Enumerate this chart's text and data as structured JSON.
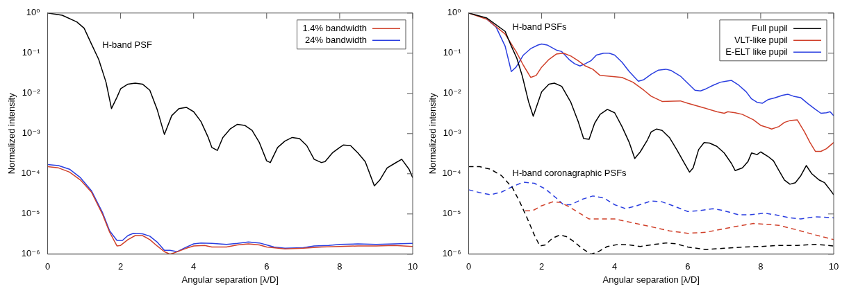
{
  "chart_data": [
    {
      "type": "line",
      "xlabel": "Angular separation [λ/D]",
      "ylabel": "Normalized intensity",
      "log": "y",
      "marker": "none",
      "legend": "top right",
      "xlim": [
        0,
        10
      ],
      "xticks": [
        0,
        2,
        4,
        6,
        8,
        10
      ],
      "ylim": [
        1e-06,
        1
      ],
      "yticks": [
        {
          "value": 1e-06,
          "label": "10⁻⁶"
        },
        {
          "value": 1e-05,
          "label": "10⁻⁵"
        },
        {
          "value": 0.0001,
          "label": "10⁻⁴"
        },
        {
          "value": 0.001,
          "label": "10⁻³"
        },
        {
          "value": 0.01,
          "label": "10⁻²"
        },
        {
          "value": 0.1,
          "label": "10⁻¹"
        },
        {
          "value": 1,
          "label": "10⁰"
        }
      ],
      "annotations": [
        "H-band PSF"
      ],
      "series": [
        {
          "color": "#000000",
          "line_style": "solid",
          "x": [
            0,
            0.4,
            0.8,
            1.0,
            1.2,
            1.4,
            1.6,
            1.75,
            1.9,
            2.0,
            2.2,
            2.4,
            2.6,
            2.8,
            3.0,
            3.2,
            3.4,
            3.6,
            3.8,
            4.0,
            4.2,
            4.4,
            4.5,
            4.65,
            4.8,
            5.0,
            5.2,
            5.4,
            5.6,
            5.8,
            6.0,
            6.1,
            6.3,
            6.5,
            6.7,
            6.9,
            7.1,
            7.3,
            7.5,
            7.6,
            7.8,
            8.0,
            8.1,
            8.3,
            8.5,
            8.7,
            8.95,
            9.1,
            9.3,
            9.5,
            9.7,
            9.9,
            10
          ],
          "values": [
            1,
            0.88,
            0.6,
            0.42,
            0.17,
            0.07,
            0.019,
            0.0042,
            0.008,
            0.013,
            0.017,
            0.018,
            0.017,
            0.012,
            0.004,
            0.00095,
            0.0028,
            0.0042,
            0.0045,
            0.0035,
            0.002,
            0.0008,
            0.00045,
            0.00038,
            0.0008,
            0.0013,
            0.0017,
            0.0016,
            0.0012,
            0.0006,
            0.00021,
            0.00019,
            0.00045,
            0.00065,
            0.0008,
            0.00075,
            0.0005,
            0.00023,
            0.00019,
            0.0002,
            0.00033,
            0.00045,
            0.00052,
            0.0005,
            0.00033,
            0.0002,
            5e-05,
            7e-05,
            0.00014,
            0.00018,
            0.00023,
            0.00013,
            8e-05
          ]
        },
        {
          "name": "1.4% bandwidth",
          "color": "#d0402a",
          "line_style": "solid",
          "x": [
            0,
            0.3,
            0.6,
            0.9,
            1.2,
            1.5,
            1.7,
            1.9,
            2.0,
            2.2,
            2.4,
            2.6,
            2.8,
            3.0,
            3.2,
            3.35,
            3.5,
            3.8,
            4.0,
            4.3,
            4.5,
            4.9,
            5.2,
            5.5,
            5.8,
            6.0,
            6.5,
            7.0,
            7.5,
            8.0,
            8.5,
            9.0,
            9.5,
            10
          ],
          "values": [
            0.00015,
            0.00014,
            0.00011,
            7e-05,
            3.5e-05,
            1e-05,
            3.5e-06,
            1.6e-06,
            1.65e-06,
            2.3e-06,
            2.9e-06,
            2.9e-06,
            2.3e-06,
            1.6e-06,
            1.15e-06,
            1e-06,
            1.1e-06,
            1.4e-06,
            1.6e-06,
            1.65e-06,
            1.5e-06,
            1.5e-06,
            1.7e-06,
            1.8e-06,
            1.7e-06,
            1.5e-06,
            1.35e-06,
            1.4e-06,
            1.5e-06,
            1.55e-06,
            1.6e-06,
            1.6e-06,
            1.65e-06,
            1.55e-06
          ]
        },
        {
          "name": "24% bandwidth",
          "color": "#2a3ee0",
          "line_style": "solid",
          "x": [
            0,
            0.3,
            0.6,
            0.9,
            1.2,
            1.5,
            1.7,
            1.9,
            2.05,
            2.2,
            2.35,
            2.6,
            2.8,
            3.0,
            3.2,
            3.35,
            3.55,
            3.8,
            4.0,
            4.2,
            4.5,
            4.9,
            5.2,
            5.5,
            5.8,
            6.0,
            6.2,
            6.5,
            7.0,
            7.3,
            7.7,
            8.0,
            8.5,
            9.0,
            9.5,
            10
          ],
          "values": [
            0.00017,
            0.00016,
            0.00013,
            8e-05,
            3.8e-05,
            1.1e-05,
            3.8e-06,
            2.2e-06,
            2.2e-06,
            2.9e-06,
            3.3e-06,
            3.2e-06,
            2.8e-06,
            2e-06,
            1.25e-06,
            1.25e-06,
            1.15e-06,
            1.5e-06,
            1.8e-06,
            1.9e-06,
            1.85e-06,
            1.75e-06,
            1.85e-06,
            2e-06,
            1.9e-06,
            1.7e-06,
            1.5e-06,
            1.4e-06,
            1.45e-06,
            1.6e-06,
            1.65e-06,
            1.75e-06,
            1.8e-06,
            1.75e-06,
            1.8e-06,
            1.85e-06
          ]
        }
      ]
    },
    {
      "type": "line",
      "xlabel": "Angular separation [λ/D]",
      "ylabel": "Normalized intensity",
      "log": "y",
      "marker": "none",
      "legend": "top right",
      "xlim": [
        0,
        10
      ],
      "xticks": [
        0,
        2,
        4,
        6,
        8,
        10
      ],
      "ylim": [
        1e-06,
        1
      ],
      "yticks": [
        {
          "value": 1e-06,
          "label": "10⁻⁶"
        },
        {
          "value": 1e-05,
          "label": "10⁻⁵"
        },
        {
          "value": 0.0001,
          "label": "10⁻⁴"
        },
        {
          "value": 0.001,
          "label": "10⁻³"
        },
        {
          "value": 0.01,
          "label": "10⁻²"
        },
        {
          "value": 0.1,
          "label": "10⁻¹"
        },
        {
          "value": 1,
          "label": "10⁰"
        }
      ],
      "annotations": [
        "H-band PSFs",
        "H-band coronagraphic PSFs"
      ],
      "series": [
        {
          "name": "Full pupil",
          "color": "#000000",
          "line_style": "solid",
          "x": [
            0,
            0.5,
            1.0,
            1.17,
            1.32,
            1.47,
            1.64,
            1.77,
            2.0,
            2.2,
            2.35,
            2.55,
            2.8,
            3.0,
            3.15,
            3.3,
            3.45,
            3.6,
            3.8,
            4.0,
            4.2,
            4.4,
            4.55,
            4.7,
            4.9,
            5.0,
            5.15,
            5.3,
            5.5,
            5.7,
            5.9,
            6.05,
            6.15,
            6.3,
            6.45,
            6.6,
            6.8,
            7.0,
            7.2,
            7.3,
            7.5,
            7.65,
            7.75,
            7.9,
            8.0,
            8.2,
            8.35,
            8.5,
            8.65,
            8.8,
            8.95,
            9.1,
            9.25,
            9.4,
            9.6,
            9.75,
            9.9,
            10
          ],
          "values": [
            1,
            0.75,
            0.35,
            0.15,
            0.075,
            0.027,
            0.0063,
            0.0027,
            0.011,
            0.017,
            0.018,
            0.015,
            0.006,
            0.002,
            0.00075,
            0.00072,
            0.0018,
            0.003,
            0.004,
            0.0033,
            0.0015,
            0.0006,
            0.00024,
            0.00035,
            0.0007,
            0.0011,
            0.0013,
            0.0012,
            0.0008,
            0.0004,
            0.00019,
            0.00011,
            0.00014,
            0.0004,
            0.0006,
            0.00058,
            0.00048,
            0.00033,
            0.00018,
            0.00012,
            0.00014,
            0.0002,
            0.00033,
            0.0003,
            0.00035,
            0.00027,
            0.00021,
            0.00012,
            7e-05,
            5.5e-05,
            6e-05,
            9e-05,
            0.00016,
            0.0001,
            7e-05,
            6e-05,
            4e-05,
            3e-05
          ]
        },
        {
          "name": "VLT-like pupil",
          "color": "#d0402a",
          "line_style": "solid",
          "x": [
            0,
            0.5,
            1.0,
            1.3,
            1.5,
            1.7,
            1.85,
            2.0,
            2.2,
            2.4,
            2.6,
            2.8,
            3.0,
            3.2,
            3.4,
            3.6,
            3.8,
            4.0,
            4.2,
            4.5,
            4.8,
            5.0,
            5.3,
            5.6,
            5.8,
            6.0,
            6.4,
            6.8,
            7.0,
            7.1,
            7.3,
            7.5,
            7.8,
            8.0,
            8.2,
            8.3,
            8.5,
            8.65,
            8.8,
            9.0,
            9.2,
            9.35,
            9.5,
            9.65,
            9.8,
            10
          ],
          "values": [
            1,
            0.7,
            0.3,
            0.11,
            0.05,
            0.025,
            0.028,
            0.045,
            0.07,
            0.095,
            0.1,
            0.085,
            0.065,
            0.048,
            0.04,
            0.028,
            0.027,
            0.026,
            0.025,
            0.019,
            0.012,
            0.0085,
            0.0063,
            0.0064,
            0.0065,
            0.0057,
            0.0045,
            0.0035,
            0.0032,
            0.0035,
            0.0033,
            0.003,
            0.0022,
            0.0016,
            0.0014,
            0.0013,
            0.0015,
            0.0019,
            0.0021,
            0.0022,
            0.0011,
            0.0006,
            0.00036,
            0.00036,
            0.00042,
            0.0006
          ]
        },
        {
          "name": "E-ELT like pupil",
          "color": "#2a3ee0",
          "line_style": "solid",
          "x": [
            0.5,
            0.75,
            1.0,
            1.17,
            1.3,
            1.5,
            1.7,
            1.9,
            2.0,
            2.15,
            2.4,
            2.55,
            2.75,
            2.9,
            3.05,
            3.2,
            3.35,
            3.5,
            3.7,
            3.85,
            4.0,
            4.2,
            4.4,
            4.55,
            4.65,
            4.8,
            5.0,
            5.2,
            5.4,
            5.55,
            5.8,
            6.0,
            6.2,
            6.35,
            6.5,
            6.7,
            6.9,
            7.05,
            7.2,
            7.4,
            7.6,
            7.75,
            7.9,
            8.05,
            8.2,
            8.4,
            8.6,
            8.75,
            8.9,
            9.1,
            9.3,
            9.5,
            9.65,
            9.8,
            9.9,
            10
          ],
          "values": [
            0.7,
            0.45,
            0.15,
            0.035,
            0.045,
            0.09,
            0.13,
            0.16,
            0.17,
            0.16,
            0.12,
            0.11,
            0.07,
            0.055,
            0.048,
            0.055,
            0.065,
            0.09,
            0.1,
            0.1,
            0.09,
            0.06,
            0.035,
            0.025,
            0.02,
            0.022,
            0.03,
            0.038,
            0.04,
            0.037,
            0.027,
            0.018,
            0.012,
            0.0115,
            0.013,
            0.016,
            0.019,
            0.02,
            0.021,
            0.016,
            0.011,
            0.0073,
            0.006,
            0.0057,
            0.007,
            0.0078,
            0.009,
            0.0095,
            0.0085,
            0.0078,
            0.0055,
            0.004,
            0.0032,
            0.0033,
            0.0035,
            0.0028
          ]
        },
        {
          "color": "#000000",
          "line_style": "dashed",
          "x": [
            0,
            0.3,
            0.6,
            0.9,
            1.2,
            1.4,
            1.6,
            1.8,
            1.95,
            2.1,
            2.3,
            2.5,
            2.7,
            2.9,
            3.1,
            3.35,
            3.55,
            3.8,
            4.1,
            4.4,
            4.7,
            5.0,
            5.4,
            5.7,
            6.0,
            6.5,
            7.0,
            7.5,
            8.0,
            8.5,
            9.0,
            9.5,
            10
          ],
          "values": [
            0.00015,
            0.00015,
            0.00013,
            9e-05,
            4.5e-05,
            2e-05,
            8e-06,
            3e-06,
            1.6e-06,
            1.7e-06,
            2.5e-06,
            3e-06,
            2.7e-06,
            2e-06,
            1.4e-06,
            1e-06,
            1.15e-06,
            1.55e-06,
            1.75e-06,
            1.7e-06,
            1.55e-06,
            1.7e-06,
            1.9e-06,
            1.8e-06,
            1.5e-06,
            1.3e-06,
            1.4e-06,
            1.5e-06,
            1.55e-06,
            1.65e-06,
            1.65e-06,
            1.75e-06,
            1.6e-06
          ]
        },
        {
          "color": "#d0402a",
          "line_style": "dashed",
          "x": [
            1.55,
            1.75,
            2.0,
            2.3,
            2.5,
            2.7,
            3.0,
            3.3,
            3.6,
            4.0,
            4.5,
            5.0,
            5.5,
            6.0,
            6.5,
            7.0,
            7.5,
            7.8,
            8.2,
            8.5,
            9.0,
            9.5,
            10
          ],
          "values": [
            1.2e-05,
            1.2e-05,
            1.6e-05,
            2e-05,
            1.95e-05,
            1.6e-05,
            1.1e-05,
            7.5e-06,
            7.5e-06,
            7.5e-06,
            6e-06,
            4.8e-06,
            3.8e-06,
            3.3e-06,
            3.5e-06,
            4.3e-06,
            5.2e-06,
            5.8e-06,
            5.5e-06,
            5.2e-06,
            4e-06,
            3e-06,
            2.3e-06
          ]
        },
        {
          "color": "#2a3ee0",
          "line_style": "dashed",
          "x": [
            0,
            0.3,
            0.6,
            0.9,
            1.2,
            1.5,
            1.8,
            2.1,
            2.4,
            2.6,
            2.8,
            3.1,
            3.4,
            3.7,
            4.0,
            4.3,
            4.6,
            5.0,
            5.3,
            5.6,
            6.0,
            6.3,
            6.7,
            7.0,
            7.4,
            7.7,
            8.1,
            8.4,
            8.8,
            9.1,
            9.5,
            10
          ],
          "values": [
            4e-05,
            3.4e-05,
            3e-05,
            3.5e-05,
            4.8e-05,
            6.2e-05,
            5.8e-05,
            4.2e-05,
            2.5e-05,
            1.7e-05,
            1.7e-05,
            2.3e-05,
            2.8e-05,
            2.5e-05,
            1.7e-05,
            1.35e-05,
            1.6e-05,
            2.1e-05,
            2e-05,
            1.6e-05,
            1.15e-05,
            1.2e-05,
            1.35e-05,
            1.2e-05,
            9.5e-06,
            9.5e-06,
            1.05e-05,
            9.5e-06,
            8e-06,
            7.5e-06,
            8.5e-06,
            8e-06
          ]
        }
      ]
    }
  ]
}
